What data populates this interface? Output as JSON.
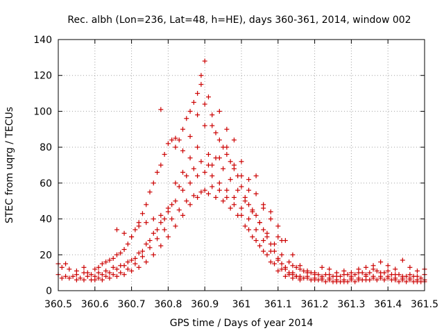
{
  "chart_data": {
    "type": "scatter",
    "title": "Rec. albh (Lon=236, Lat=48, h=HE), days 360-361, 2014, window 002",
    "xlabel": "GPS time / Days of year 2014",
    "ylabel": "STEC from uqrg / TECUs",
    "xlim": [
      360.5,
      361.5
    ],
    "ylim": [
      0,
      140
    ],
    "x_ticks": [
      "360.5",
      "360.6",
      "360.7",
      "360.8",
      "360.9",
      "361",
      "361.1",
      "361.2",
      "361.3",
      "361.4",
      "361.5"
    ],
    "y_ticks": [
      "0",
      "20",
      "40",
      "60",
      "80",
      "100",
      "120",
      "140"
    ],
    "grid": true,
    "marker": "plus",
    "series_color": "#cc0000",
    "points": [
      [
        360.5,
        15
      ],
      [
        360.51,
        13
      ],
      [
        360.52,
        15
      ],
      [
        360.53,
        12
      ],
      [
        360.55,
        11
      ],
      [
        360.57,
        13
      ],
      [
        360.58,
        10
      ],
      [
        360.6,
        12
      ],
      [
        360.61,
        13
      ],
      [
        360.62,
        15
      ],
      [
        360.63,
        16
      ],
      [
        360.64,
        17
      ],
      [
        360.65,
        18
      ],
      [
        360.66,
        20
      ],
      [
        360.67,
        21
      ],
      [
        360.68,
        23
      ],
      [
        360.69,
        26
      ],
      [
        360.7,
        30
      ],
      [
        360.71,
        34
      ],
      [
        360.72,
        38
      ],
      [
        360.73,
        43
      ],
      [
        360.74,
        48
      ],
      [
        360.75,
        55
      ],
      [
        360.76,
        60
      ],
      [
        360.77,
        66
      ],
      [
        360.78,
        70
      ],
      [
        360.79,
        76
      ],
      [
        360.8,
        82
      ],
      [
        360.81,
        84
      ],
      [
        360.82,
        80
      ],
      [
        360.83,
        84
      ],
      [
        360.84,
        90
      ],
      [
        360.85,
        96
      ],
      [
        360.86,
        100
      ],
      [
        360.87,
        105
      ],
      [
        360.88,
        110
      ],
      [
        360.89,
        115
      ],
      [
        360.9,
        128
      ],
      [
        360.91,
        108
      ],
      [
        360.92,
        92
      ],
      [
        360.93,
        88
      ],
      [
        360.94,
        84
      ],
      [
        360.95,
        80
      ],
      [
        360.96,
        76
      ],
      [
        360.97,
        72
      ],
      [
        360.98,
        68
      ],
      [
        360.99,
        64
      ],
      [
        361.0,
        58
      ],
      [
        361.01,
        52
      ],
      [
        361.02,
        48
      ],
      [
        361.03,
        45
      ],
      [
        361.04,
        42
      ],
      [
        361.05,
        38
      ],
      [
        361.06,
        34
      ],
      [
        361.07,
        30
      ],
      [
        361.08,
        26
      ],
      [
        361.09,
        22
      ],
      [
        361.1,
        18
      ],
      [
        361.11,
        15
      ],
      [
        361.12,
        12
      ],
      [
        361.13,
        10
      ],
      [
        361.14,
        9
      ],
      [
        361.15,
        8
      ],
      [
        361.16,
        7
      ],
      [
        361.18,
        7
      ],
      [
        361.2,
        6
      ],
      [
        361.22,
        6
      ],
      [
        361.24,
        6
      ],
      [
        361.26,
        5
      ],
      [
        361.28,
        5
      ],
      [
        361.3,
        6
      ],
      [
        361.32,
        6
      ],
      [
        361.34,
        6
      ],
      [
        361.36,
        7
      ],
      [
        361.38,
        7
      ],
      [
        361.4,
        7
      ],
      [
        361.42,
        6
      ],
      [
        361.44,
        6
      ],
      [
        361.46,
        6
      ],
      [
        361.48,
        5
      ],
      [
        361.5,
        5
      ],
      [
        360.5,
        9
      ],
      [
        360.52,
        8
      ],
      [
        360.54,
        8
      ],
      [
        360.56,
        7
      ],
      [
        360.58,
        8
      ],
      [
        360.6,
        8
      ],
      [
        360.62,
        9
      ],
      [
        360.64,
        10
      ],
      [
        360.66,
        12
      ],
      [
        360.68,
        14
      ],
      [
        360.7,
        17
      ],
      [
        360.72,
        21
      ],
      [
        360.74,
        26
      ],
      [
        360.76,
        32
      ],
      [
        360.78,
        38
      ],
      [
        360.8,
        44
      ],
      [
        360.82,
        50
      ],
      [
        360.84,
        56
      ],
      [
        360.86,
        60
      ],
      [
        360.88,
        64
      ],
      [
        360.9,
        66
      ],
      [
        360.92,
        64
      ],
      [
        360.94,
        60
      ],
      [
        360.96,
        56
      ],
      [
        360.98,
        52
      ],
      [
        361.0,
        46
      ],
      [
        361.02,
        40
      ],
      [
        361.04,
        34
      ],
      [
        361.06,
        28
      ],
      [
        361.08,
        22
      ],
      [
        361.1,
        17
      ],
      [
        361.12,
        13
      ],
      [
        361.14,
        10
      ],
      [
        361.16,
        8
      ],
      [
        361.18,
        8
      ],
      [
        361.2,
        7
      ],
      [
        361.22,
        7
      ],
      [
        361.24,
        7
      ],
      [
        361.26,
        6
      ],
      [
        361.28,
        6
      ],
      [
        361.3,
        7
      ],
      [
        361.32,
        7
      ],
      [
        361.34,
        8
      ],
      [
        361.36,
        8
      ],
      [
        361.38,
        8
      ],
      [
        361.4,
        8
      ],
      [
        361.42,
        7
      ],
      [
        361.44,
        7
      ],
      [
        361.46,
        7
      ],
      [
        361.48,
        6
      ],
      [
        361.5,
        6
      ],
      [
        360.51,
        7
      ],
      [
        360.53,
        7
      ],
      [
        360.55,
        6
      ],
      [
        360.57,
        6
      ],
      [
        360.59,
        6
      ],
      [
        360.61,
        7
      ],
      [
        360.63,
        8
      ],
      [
        360.65,
        9
      ],
      [
        360.67,
        10
      ],
      [
        360.69,
        12
      ],
      [
        360.71,
        15
      ],
      [
        360.73,
        19
      ],
      [
        360.75,
        24
      ],
      [
        360.77,
        29
      ],
      [
        360.79,
        34
      ],
      [
        360.81,
        40
      ],
      [
        360.83,
        45
      ],
      [
        360.85,
        50
      ],
      [
        360.87,
        53
      ],
      [
        360.89,
        55
      ],
      [
        360.91,
        54
      ],
      [
        360.93,
        52
      ],
      [
        360.95,
        50
      ],
      [
        360.97,
        46
      ],
      [
        360.99,
        42
      ],
      [
        361.01,
        36
      ],
      [
        361.03,
        30
      ],
      [
        361.05,
        25
      ],
      [
        361.07,
        20
      ],
      [
        361.09,
        15
      ],
      [
        361.11,
        12
      ],
      [
        361.13,
        9
      ],
      [
        361.15,
        8
      ],
      [
        361.17,
        7
      ],
      [
        361.19,
        6
      ],
      [
        361.21,
        6
      ],
      [
        361.23,
        5
      ],
      [
        361.25,
        5
      ],
      [
        361.27,
        5
      ],
      [
        361.29,
        5
      ],
      [
        361.31,
        5
      ],
      [
        361.33,
        6
      ],
      [
        361.35,
        6
      ],
      [
        361.37,
        6
      ],
      [
        361.39,
        6
      ],
      [
        361.41,
        6
      ],
      [
        361.43,
        5
      ],
      [
        361.45,
        5
      ],
      [
        361.47,
        5
      ],
      [
        361.49,
        5
      ],
      [
        360.6,
        6
      ],
      [
        360.62,
        6
      ],
      [
        360.64,
        7
      ],
      [
        360.66,
        8
      ],
      [
        360.68,
        9
      ],
      [
        360.7,
        11
      ],
      [
        360.72,
        13
      ],
      [
        360.74,
        16
      ],
      [
        360.76,
        20
      ],
      [
        360.78,
        25
      ],
      [
        360.8,
        30
      ],
      [
        360.82,
        36
      ],
      [
        360.84,
        42
      ],
      [
        360.86,
        48
      ],
      [
        360.88,
        52
      ],
      [
        360.9,
        56
      ],
      [
        360.92,
        58
      ],
      [
        360.94,
        56
      ],
      [
        360.96,
        52
      ],
      [
        360.98,
        48
      ],
      [
        361.0,
        42
      ],
      [
        361.02,
        34
      ],
      [
        361.04,
        28
      ],
      [
        361.06,
        22
      ],
      [
        361.08,
        16
      ],
      [
        361.1,
        11
      ],
      [
        361.12,
        8
      ],
      [
        361.14,
        7
      ],
      [
        361.16,
        6
      ],
      [
        360.66,
        34
      ],
      [
        360.68,
        32
      ],
      [
        360.7,
        30
      ],
      [
        360.72,
        36
      ],
      [
        360.74,
        38
      ],
      [
        360.76,
        40
      ],
      [
        360.78,
        42
      ],
      [
        360.8,
        46
      ],
      [
        360.82,
        60
      ],
      [
        360.84,
        66
      ],
      [
        360.86,
        74
      ],
      [
        360.88,
        80
      ],
      [
        360.9,
        92
      ],
      [
        360.92,
        98
      ],
      [
        360.94,
        100
      ],
      [
        360.96,
        90
      ],
      [
        360.98,
        84
      ],
      [
        361.0,
        72
      ],
      [
        361.02,
        62
      ],
      [
        361.04,
        54
      ],
      [
        361.06,
        46
      ],
      [
        361.08,
        40
      ],
      [
        361.1,
        36
      ],
      [
        361.12,
        28
      ],
      [
        361.14,
        20
      ],
      [
        361.16,
        14
      ],
      [
        361.18,
        10
      ],
      [
        361.2,
        9
      ],
      [
        361.22,
        8
      ],
      [
        361.24,
        9
      ],
      [
        361.26,
        10
      ],
      [
        361.28,
        11
      ],
      [
        361.3,
        10
      ],
      [
        361.32,
        12
      ],
      [
        361.34,
        13
      ],
      [
        361.36,
        14
      ],
      [
        361.38,
        16
      ],
      [
        361.4,
        14
      ],
      [
        361.42,
        12
      ],
      [
        361.44,
        17
      ],
      [
        361.46,
        13
      ],
      [
        361.48,
        11
      ],
      [
        361.5,
        12
      ],
      [
        360.78,
        101
      ],
      [
        360.82,
        85
      ],
      [
        360.84,
        78
      ],
      [
        360.86,
        86
      ],
      [
        360.88,
        98
      ],
      [
        360.89,
        120
      ],
      [
        360.9,
        104
      ],
      [
        360.91,
        70
      ],
      [
        360.92,
        70
      ],
      [
        360.94,
        74
      ],
      [
        360.96,
        80
      ],
      [
        360.98,
        70
      ],
      [
        361.0,
        64
      ],
      [
        361.02,
        56
      ],
      [
        361.04,
        64
      ],
      [
        361.06,
        48
      ],
      [
        361.08,
        44
      ],
      [
        361.1,
        30
      ],
      [
        361.11,
        28
      ],
      [
        361.14,
        14
      ],
      [
        361.16,
        12
      ],
      [
        361.18,
        11
      ],
      [
        361.2,
        10
      ],
      [
        361.22,
        13
      ],
      [
        361.24,
        12
      ],
      [
        361.26,
        8
      ],
      [
        361.28,
        9
      ],
      [
        361.3,
        8
      ],
      [
        361.32,
        10
      ],
      [
        361.34,
        9
      ],
      [
        361.36,
        12
      ],
      [
        361.38,
        10
      ],
      [
        361.4,
        11
      ],
      [
        361.42,
        9
      ],
      [
        361.44,
        8
      ],
      [
        361.46,
        9
      ],
      [
        361.48,
        8
      ],
      [
        361.5,
        9
      ],
      [
        360.55,
        9
      ],
      [
        360.57,
        10
      ],
      [
        360.59,
        9
      ],
      [
        360.61,
        10
      ],
      [
        360.63,
        11
      ],
      [
        360.65,
        13
      ],
      [
        360.67,
        14
      ],
      [
        360.69,
        16
      ],
      [
        360.71,
        18
      ],
      [
        360.73,
        22
      ],
      [
        360.75,
        28
      ],
      [
        360.77,
        34
      ],
      [
        360.79,
        40
      ],
      [
        360.81,
        48
      ],
      [
        360.83,
        58
      ],
      [
        360.85,
        64
      ],
      [
        360.87,
        68
      ],
      [
        360.89,
        72
      ],
      [
        360.91,
        76
      ],
      [
        360.93,
        74
      ],
      [
        360.95,
        68
      ],
      [
        360.97,
        62
      ],
      [
        360.99,
        56
      ],
      [
        361.01,
        50
      ],
      [
        361.03,
        44
      ],
      [
        361.05,
        38
      ],
      [
        361.07,
        32
      ],
      [
        361.09,
        26
      ],
      [
        361.11,
        20
      ],
      [
        361.13,
        16
      ],
      [
        361.15,
        13
      ],
      [
        361.17,
        11
      ],
      [
        361.19,
        10
      ],
      [
        361.21,
        9
      ],
      [
        361.23,
        9
      ],
      [
        361.25,
        8
      ],
      [
        361.27,
        8
      ],
      [
        361.29,
        9
      ],
      [
        361.31,
        9
      ],
      [
        361.33,
        10
      ],
      [
        361.35,
        10
      ],
      [
        361.37,
        11
      ],
      [
        361.39,
        10
      ],
      [
        361.41,
        9
      ],
      [
        361.43,
        9
      ],
      [
        361.45,
        8
      ],
      [
        361.47,
        8
      ],
      [
        361.49,
        7
      ]
    ]
  }
}
